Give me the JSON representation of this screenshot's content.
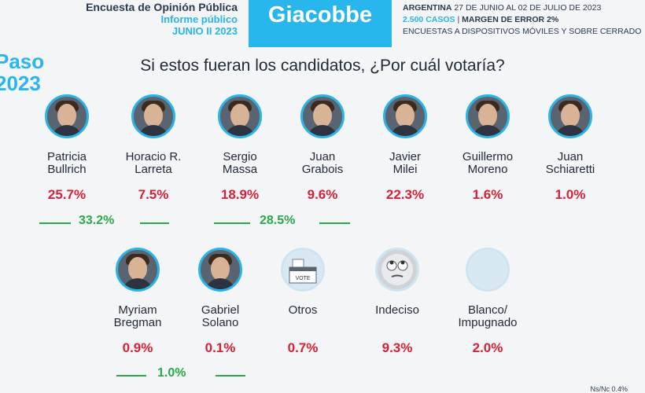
{
  "header": {
    "left_line1": "Encuesta de Opinión Pública",
    "left_line2": "Informe público",
    "left_line3": "JUNIO II 2023",
    "brand": "Giacobbe",
    "right_line1_country": "ARGENTINA",
    "right_line1_dates": "27 DE JUNIO AL 02 DE JULIO DE 2023",
    "right_line2_cases": "2.500 CASOS",
    "right_line2_margin": "MARGEN DE ERROR 2%",
    "right_line3": "ENCUESTAS A DISPOSITIVOS MÓVILES Y SOBRE CERRADO"
  },
  "side_label_1": "Paso",
  "side_label_2": "2023",
  "question": "Si estos fueran los candidatos, ¿Por cuál votaría?",
  "colors": {
    "brand": "#29b6ec",
    "percent": "#d8203a",
    "sum": "#2aa84a"
  },
  "chart_data": {
    "type": "table",
    "title": "Si estos fueran los candidatos, ¿Por cuál votaría?",
    "candidates": [
      {
        "name1": "Patricia",
        "name2": "Bullrich",
        "pct": "25.7%",
        "icon": "photo"
      },
      {
        "name1": "Horacio R.",
        "name2": "Larreta",
        "pct": "7.5%",
        "icon": "photo"
      },
      {
        "name1": "Sergio",
        "name2": "Massa",
        "pct": "18.9%",
        "icon": "photo"
      },
      {
        "name1": "Juan",
        "name2": "Grabois",
        "pct": "9.6%",
        "icon": "photo"
      },
      {
        "name1": "Javier",
        "name2": "Milei",
        "pct": "22.3%",
        "icon": "photo"
      },
      {
        "name1": "Guillermo",
        "name2": "Moreno",
        "pct": "1.6%",
        "icon": "photo"
      },
      {
        "name1": "Juan",
        "name2": "Schiaretti",
        "pct": "1.0%",
        "icon": "photo"
      },
      {
        "name1": "Myriam",
        "name2": "Bregman",
        "pct": "0.9%",
        "icon": "photo"
      },
      {
        "name1": "Gabriel",
        "name2": "Solano",
        "pct": "0.1%",
        "icon": "photo"
      },
      {
        "name1": "Otros",
        "name2": "",
        "pct": "0.7%",
        "icon": "ballot-box-icon",
        "icon_label": "VOTE"
      },
      {
        "name1": "Indeciso",
        "name2": "",
        "pct": "9.3%",
        "icon": "rolling-eyes-emoji-icon"
      },
      {
        "name1": "Blanco/",
        "name2": "Impugnado",
        "pct": "2.0%",
        "icon": "blank-circle-icon"
      }
    ],
    "totals": [
      {
        "label": "33.2%",
        "covers": [
          "Patricia Bullrich",
          "Horacio R. Larreta"
        ]
      },
      {
        "label": "28.5%",
        "covers": [
          "Sergio Massa",
          "Juan Grabois"
        ]
      },
      {
        "label": "1.0%",
        "covers": [
          "Myriam Bregman",
          "Gabriel Solano"
        ]
      }
    ]
  },
  "footnote": "Ns/Nc 0.4%"
}
